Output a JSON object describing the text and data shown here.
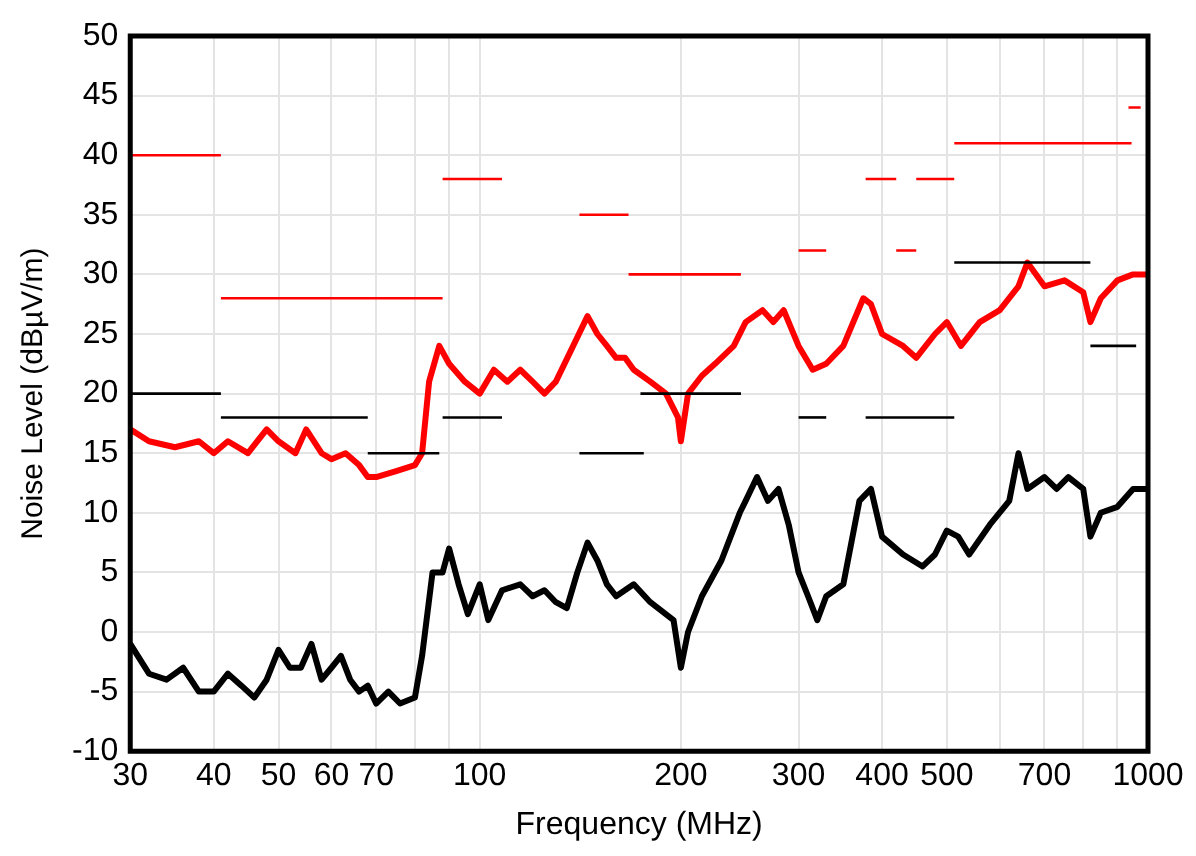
{
  "chart_data": {
    "type": "line",
    "xlabel": "Frequency (MHz)",
    "ylabel": "Noise Level (dBµV/m)",
    "log": "x",
    "xlim": [
      30,
      1000
    ],
    "ylim": [
      -10,
      50
    ],
    "xticks": [
      30,
      40,
      50,
      60,
      70,
      {
        "value": 80,
        "label": null
      },
      {
        "value": 90,
        "label": null
      },
      100,
      200,
      300,
      400,
      500,
      {
        "value": 600,
        "label": null
      },
      700,
      {
        "value": 800,
        "label": null
      },
      {
        "value": 900,
        "label": null
      },
      1000
    ],
    "yticks": [
      -10,
      -5,
      0,
      5,
      10,
      15,
      20,
      25,
      30,
      35,
      40,
      45,
      50
    ],
    "grid": true,
    "legend": false,
    "marker": "none",
    "line_style": "solid",
    "series": [
      {
        "color": "#ff0000",
        "x": [
          30,
          32,
          35,
          38,
          40,
          42,
          45,
          48,
          50,
          53,
          55,
          58,
          60,
          63,
          66,
          68,
          70,
          75,
          80,
          82,
          84,
          87,
          90,
          95,
          100,
          105,
          110,
          115,
          120,
          125,
          130,
          138,
          145,
          150,
          155,
          160,
          165,
          170,
          180,
          190,
          198,
          200,
          205,
          215,
          225,
          240,
          250,
          265,
          275,
          285,
          300,
          315,
          330,
          350,
          375,
          385,
          400,
          430,
          450,
          480,
          500,
          525,
          560,
          600,
          640,
          660,
          700,
          750,
          800,
          820,
          850,
          900,
          950,
          1000
        ],
        "values": [
          17,
          16,
          15.5,
          16,
          15,
          16,
          15,
          17,
          16,
          15,
          17,
          15,
          14.5,
          15,
          14,
          13,
          13,
          13.5,
          14,
          15,
          21,
          24,
          22.5,
          21,
          20,
          22,
          21,
          22,
          21,
          20,
          21,
          24,
          26.5,
          25,
          24,
          23,
          23,
          22,
          21,
          20,
          18,
          16,
          20,
          21.5,
          22.5,
          24,
          26,
          27,
          26,
          27,
          24,
          22,
          22.5,
          24,
          28,
          27.5,
          25,
          24,
          23,
          25,
          26,
          24,
          26,
          27,
          29,
          31,
          29,
          29.5,
          28.5,
          26,
          28,
          29.5,
          30,
          30
        ]
      },
      {
        "color": "#000000",
        "x": [
          30,
          32,
          34,
          36,
          38,
          40,
          42,
          44,
          46,
          48,
          50,
          52,
          54,
          56,
          58,
          60,
          62,
          64,
          66,
          68,
          70,
          73,
          76,
          80,
          82,
          85,
          88,
          90,
          93,
          96,
          100,
          103,
          108,
          115,
          120,
          125,
          130,
          135,
          140,
          145,
          150,
          155,
          160,
          170,
          180,
          195,
          200,
          205,
          215,
          230,
          245,
          250,
          260,
          270,
          280,
          290,
          300,
          310,
          320,
          330,
          350,
          370,
          385,
          400,
          430,
          460,
          480,
          500,
          520,
          540,
          580,
          620,
          640,
          660,
          700,
          730,
          760,
          800,
          820,
          850,
          900,
          950,
          1000
        ],
        "values": [
          -1,
          -3.5,
          -4,
          -3,
          -5,
          -5,
          -3.5,
          -4.5,
          -5.5,
          -4,
          -1.5,
          -3,
          -3,
          -1,
          -4,
          -3,
          -2,
          -4,
          -5,
          -4.5,
          -6,
          -5,
          -6,
          -5.5,
          -2,
          5,
          5,
          7,
          4,
          1.5,
          4,
          1,
          3.5,
          4,
          3,
          3.5,
          2.5,
          2,
          5,
          7.5,
          6,
          4,
          3,
          4,
          2.5,
          1,
          -3,
          0,
          3,
          6,
          10,
          11,
          13,
          11,
          12,
          9,
          5,
          3,
          1,
          3,
          4,
          11,
          12,
          8,
          6.5,
          5.5,
          6.5,
          8.5,
          8,
          6.5,
          9,
          11,
          15,
          12,
          13,
          12,
          13,
          12,
          8,
          10,
          10.5,
          12,
          12
        ]
      },
      {
        "color": "#ff0000",
        "x": [
          30,
          41
        ],
        "values": [
          40,
          40
        ]
      },
      {
        "color": "#ff0000",
        "x": [
          41,
          88
        ],
        "values": [
          28,
          28
        ]
      },
      {
        "color": "#ff0000",
        "x": [
          88,
          108
        ],
        "values": [
          38,
          38
        ]
      },
      {
        "color": "#ff0000",
        "x": [
          141,
          167
        ],
        "values": [
          35,
          35
        ]
      },
      {
        "color": "#ff0000",
        "x": [
          167,
          246
        ],
        "values": [
          30,
          30
        ]
      },
      {
        "color": "#ff0000",
        "x": [
          300,
          330
        ],
        "values": [
          32,
          32
        ]
      },
      {
        "color": "#ff0000",
        "x": [
          378,
          420
        ],
        "values": [
          38,
          38
        ]
      },
      {
        "color": "#ff0000",
        "x": [
          420,
          450
        ],
        "values": [
          32,
          32
        ]
      },
      {
        "color": "#ff0000",
        "x": [
          450,
          513
        ],
        "values": [
          38,
          38
        ]
      },
      {
        "color": "#ff0000",
        "x": [
          513,
          945
        ],
        "values": [
          41,
          41
        ]
      },
      {
        "color": "#ff0000",
        "x": [
          935,
          975
        ],
        "values": [
          44,
          44
        ]
      },
      {
        "color": "#000000",
        "x": [
          30,
          41
        ],
        "values": [
          20,
          20
        ]
      },
      {
        "color": "#000000",
        "x": [
          41,
          68
        ],
        "values": [
          18,
          18
        ]
      },
      {
        "color": "#000000",
        "x": [
          68,
          87
        ],
        "values": [
          15,
          15
        ]
      },
      {
        "color": "#000000",
        "x": [
          88,
          108
        ],
        "values": [
          18,
          18
        ]
      },
      {
        "color": "#000000",
        "x": [
          141,
          176
        ],
        "values": [
          15,
          15
        ]
      },
      {
        "color": "#000000",
        "x": [
          174,
          246
        ],
        "values": [
          20,
          20
        ]
      },
      {
        "color": "#000000",
        "x": [
          300,
          330
        ],
        "values": [
          18,
          18
        ]
      },
      {
        "color": "#000000",
        "x": [
          378,
          513
        ],
        "values": [
          18,
          18
        ]
      },
      {
        "color": "#000000",
        "x": [
          513,
          820
        ],
        "values": [
          31,
          31
        ]
      },
      {
        "color": "#000000",
        "x": [
          820,
          960
        ],
        "values": [
          24,
          24
        ]
      }
    ]
  }
}
